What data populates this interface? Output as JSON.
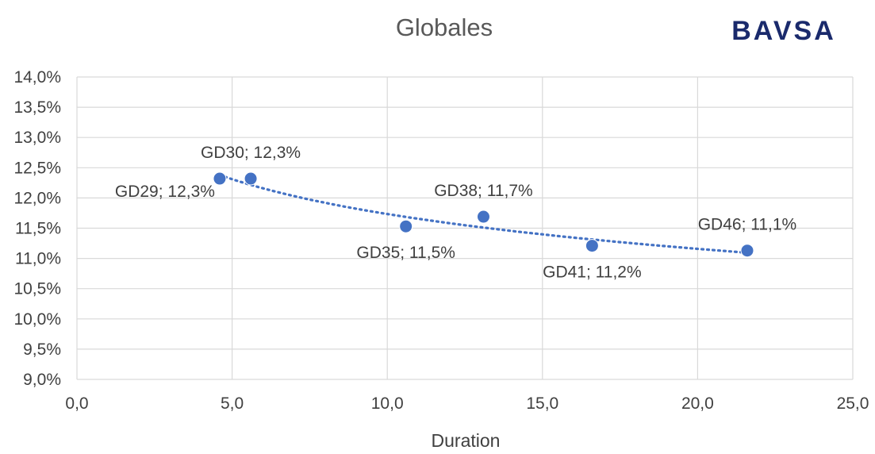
{
  "logo": {
    "text": "BAVSA"
  },
  "chart_data": {
    "type": "scatter",
    "title": "Globales",
    "xlabel": "Duration",
    "ylabel": "",
    "xlim": [
      0,
      25
    ],
    "ylim": [
      9,
      14
    ],
    "x_ticks": [
      0,
      5,
      10,
      15,
      20,
      25
    ],
    "x_tick_labels": [
      "0,0",
      "5,0",
      "10,0",
      "15,0",
      "20,0",
      "25,0"
    ],
    "y_ticks": [
      9,
      9.5,
      10,
      10.5,
      11,
      11.5,
      12,
      12.5,
      13,
      13.5,
      14
    ],
    "y_tick_labels": [
      "9,0%",
      "9,5%",
      "10,0%",
      "10,5%",
      "11,0%",
      "11,5%",
      "12,0%",
      "12,5%",
      "13,0%",
      "13,5%",
      "14,0%"
    ],
    "grid": true,
    "trendline": "logarithmic, dotted",
    "series": [
      {
        "points": [
          {
            "x": 4.6,
            "y": 12.32,
            "label": "GD29; 12,3%",
            "label_pos": "left"
          },
          {
            "x": 5.6,
            "y": 12.32,
            "label": "GD30; 12,3%",
            "label_pos": "above"
          },
          {
            "x": 10.6,
            "y": 11.53,
            "label": "GD35; 11,5%",
            "label_pos": "below"
          },
          {
            "x": 13.1,
            "y": 11.69,
            "label": "GD38; 11,7%",
            "label_pos": "above"
          },
          {
            "x": 16.6,
            "y": 11.21,
            "label": "GD41; 11,2%",
            "label_pos": "below"
          },
          {
            "x": 21.6,
            "y": 11.13,
            "label": "GD46; 11,1%",
            "label_pos": "above"
          }
        ]
      }
    ],
    "colors": {
      "marker": "#4472c4",
      "grid": "#d9d9d9",
      "text": "#404040"
    }
  }
}
